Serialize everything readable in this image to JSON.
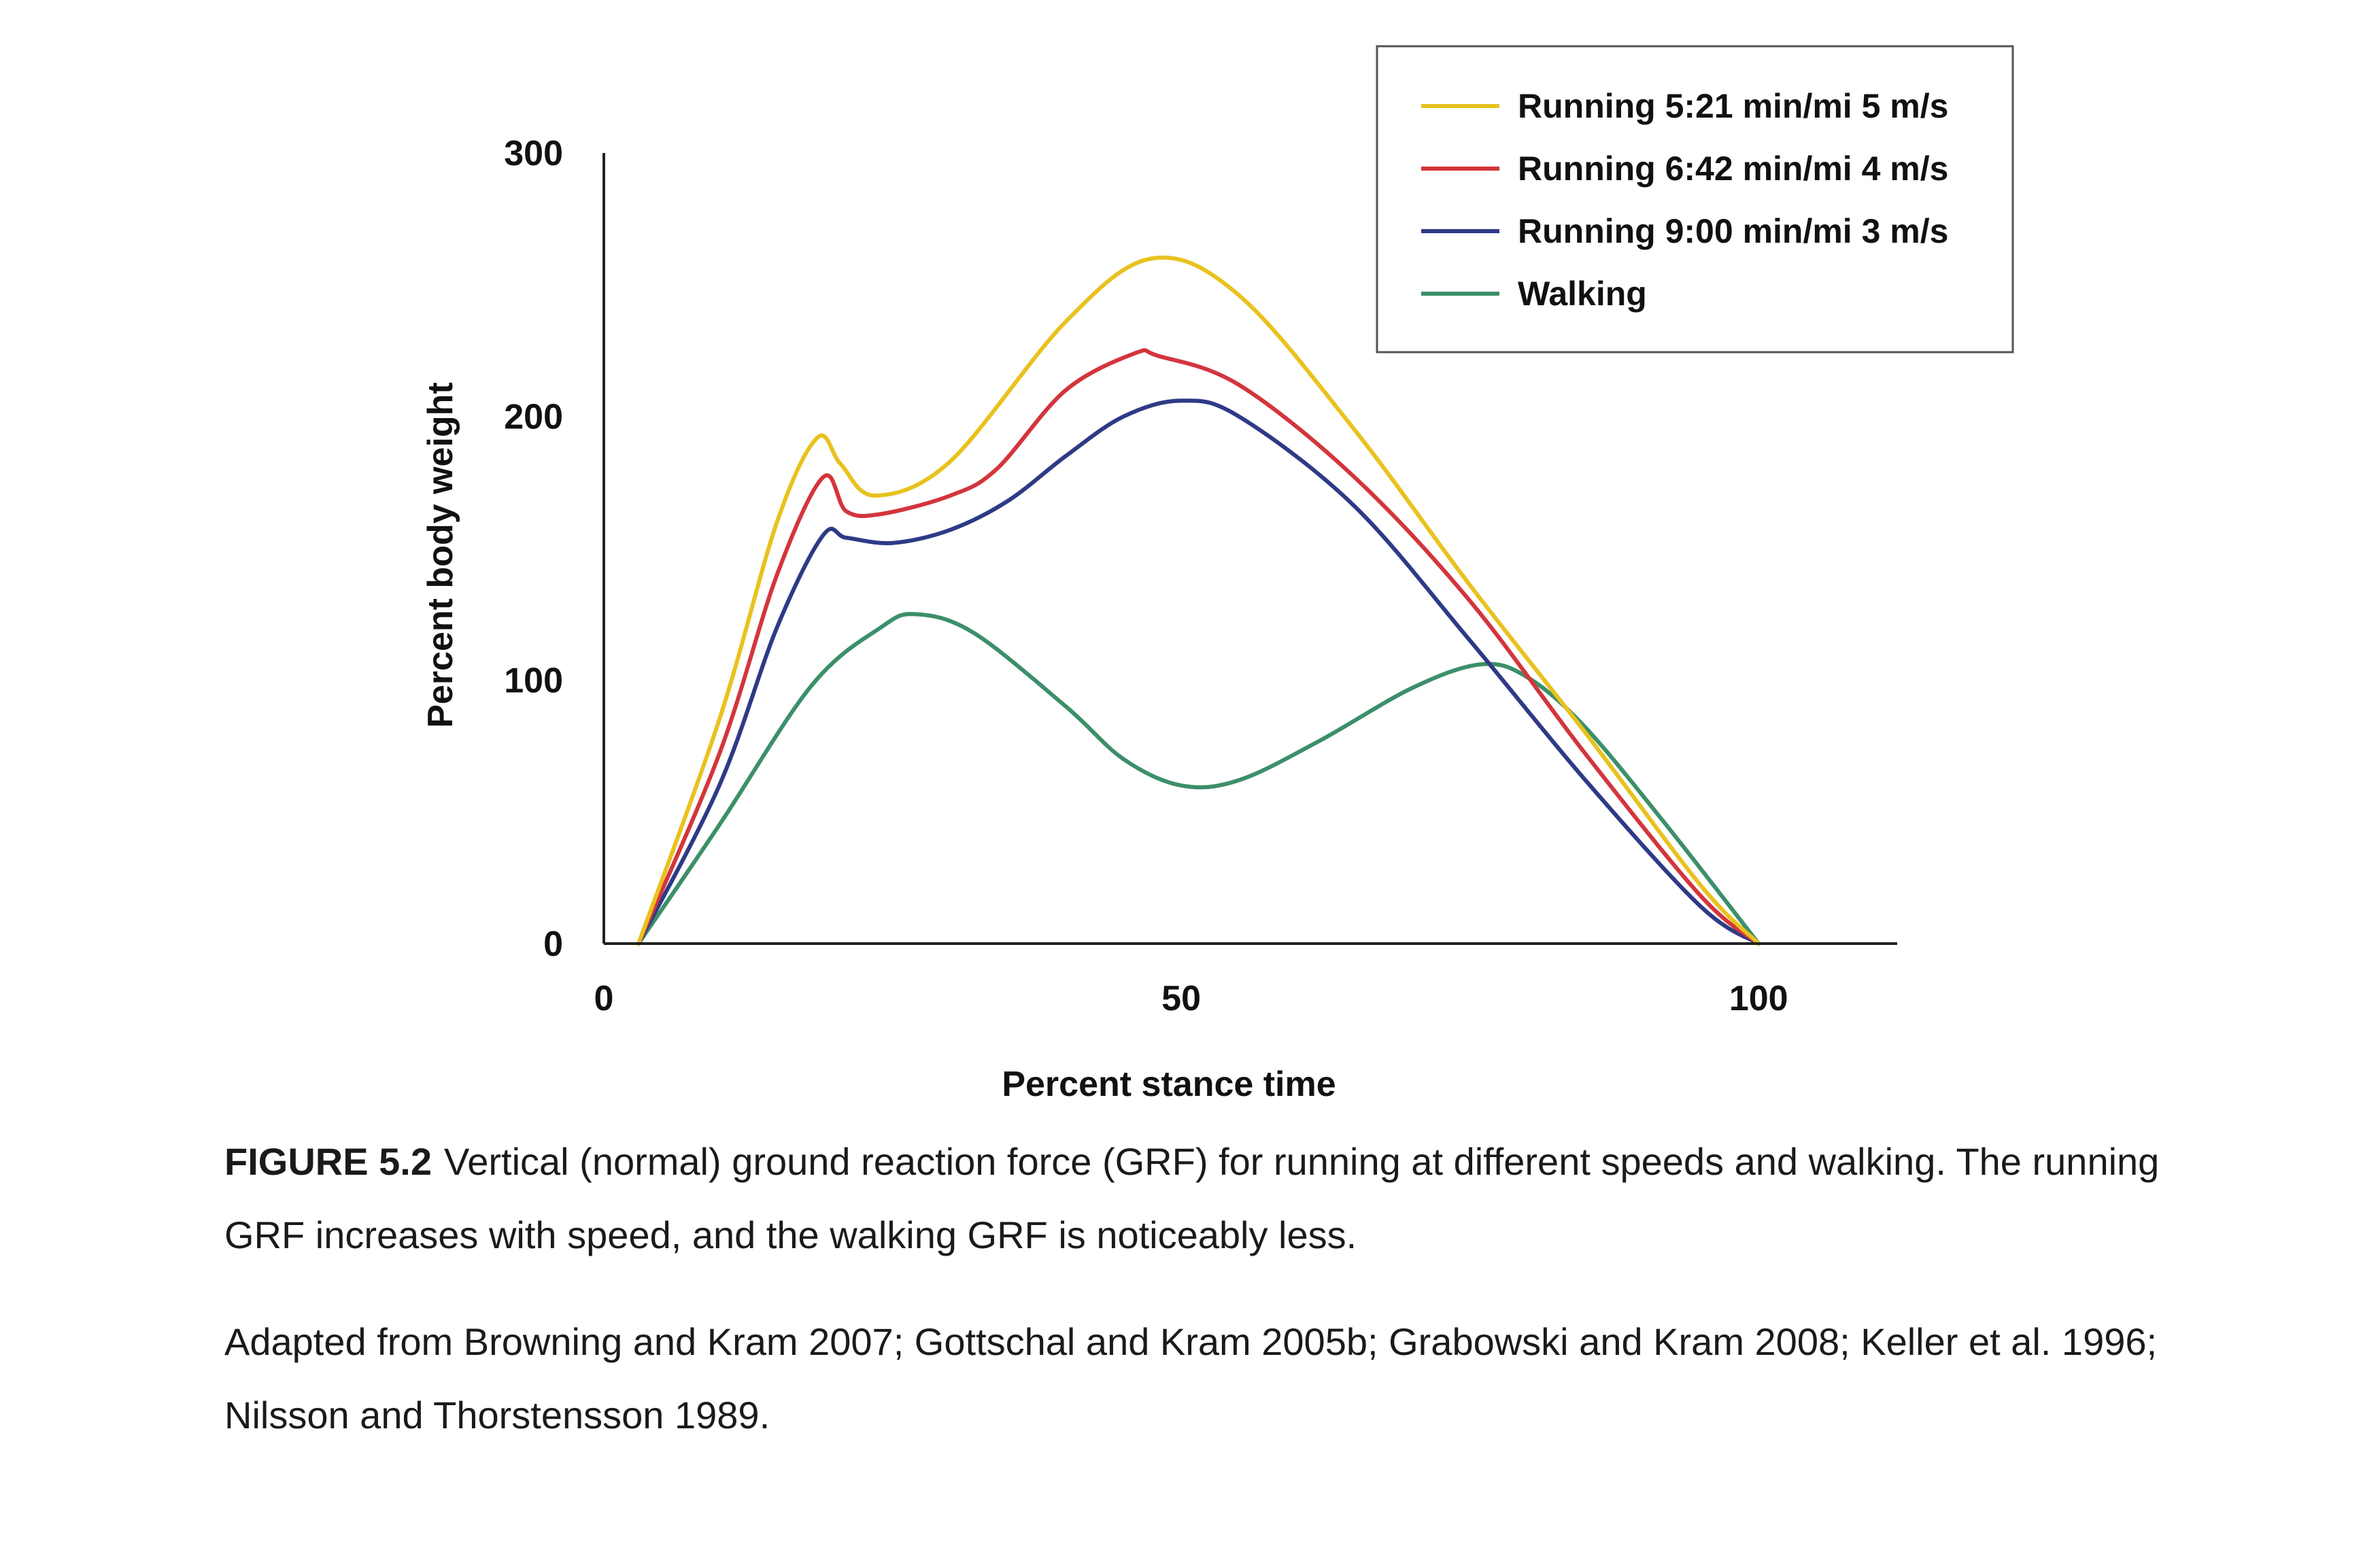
{
  "chart_data": {
    "type": "line",
    "xlabel": "Percent stance time",
    "ylabel": "Percent body weight",
    "xlim": [
      0,
      112
    ],
    "ylim": [
      0,
      300
    ],
    "x_ticks": [
      "0",
      "50",
      "100"
    ],
    "y_ticks": [
      "0",
      "100",
      "200",
      "300"
    ],
    "legend_position": "top-right",
    "series": [
      {
        "name": "Running 5:21 min/mi 5 m/s",
        "color": "#e8c21e",
        "x": [
          3,
          10,
          15,
          18.5,
          20.5,
          23.5,
          30,
          40,
          47.5,
          55,
          65,
          75,
          85,
          95,
          100
        ],
        "y": [
          0,
          85,
          160,
          192,
          182,
          170,
          183,
          236,
          260,
          246,
          195,
          136,
          80,
          22,
          0
        ]
      },
      {
        "name": "Running 6:42 min/mi 4 m/s",
        "color": "#d3353c",
        "x": [
          3,
          10,
          15,
          19,
          21,
          24,
          30,
          34,
          40,
          46,
          48,
          55,
          65,
          75,
          85,
          95,
          100
        ],
        "y": [
          0,
          72,
          140,
          177,
          164,
          163,
          170,
          180,
          210,
          224,
          223,
          212,
          177,
          130,
          72,
          18,
          0
        ]
      },
      {
        "name": "Running 9:00 min/mi 3 m/s",
        "color": "#2e3a86",
        "x": [
          3,
          10,
          15,
          19,
          21,
          25,
          30,
          35,
          40,
          45,
          50,
          55,
          65,
          75,
          85,
          95,
          100
        ],
        "y": [
          0,
          60,
          120,
          155,
          154,
          152,
          157,
          168,
          185,
          200,
          206,
          200,
          166,
          115,
          62,
          14,
          0
        ]
      },
      {
        "name": "Walking",
        "color": "#3c8f6a",
        "x": [
          3,
          10,
          18,
          24,
          27,
          32,
          40,
          45,
          50,
          55,
          62,
          70,
          76,
          80,
          85,
          92,
          100
        ],
        "y": [
          0,
          45,
          98,
          120,
          125,
          118,
          90,
          70,
          60,
          62,
          77,
          97,
          106,
          101,
          82,
          45,
          0
        ]
      }
    ]
  },
  "caption": {
    "figure_label": "FIGURE 5.2",
    "text": "Vertical (normal) ground reaction force (GRF) for running at different speeds and walking. The running GRF increases with speed, and the walking GRF is noticeably less.",
    "source": "Adapted from Browning and Kram 2007; Gottschal and Kram 2005b; Grabowski and Kram 2008; Keller et al. 1996; Nilsson and Thorstensson 1989."
  }
}
